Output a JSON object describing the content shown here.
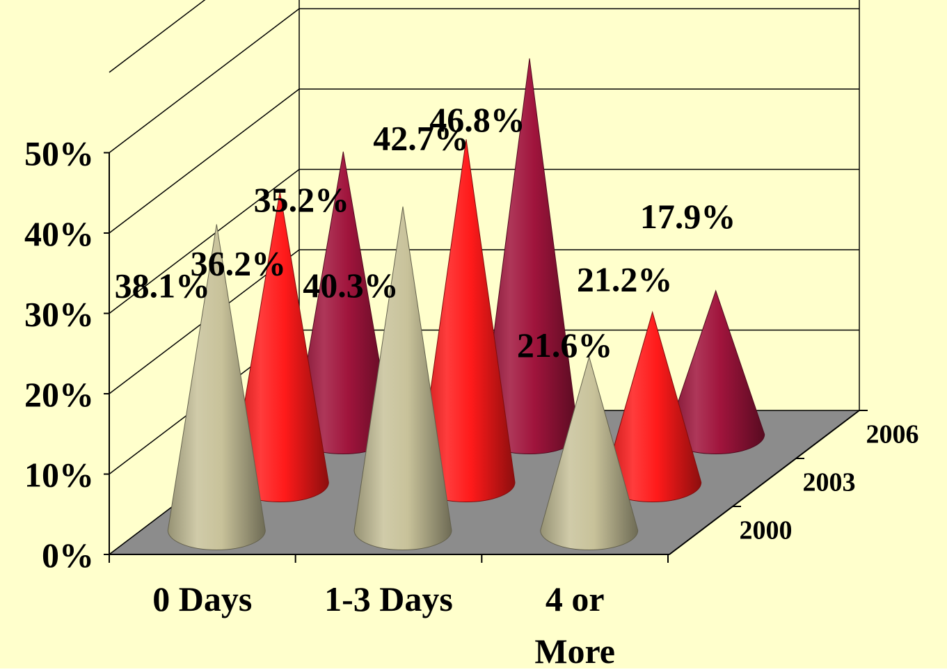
{
  "colors": {
    "background": "#FFFFCC",
    "floor": "#8C8C8C",
    "gridline": "#000000",
    "series_2000": "#C8C29A",
    "series_2003": "#FF1A1A",
    "series_2006": "#A0143C"
  },
  "chart_data": {
    "type": "bar",
    "shape": "3d-cone",
    "title": "",
    "xlabel": "",
    "ylabel": "",
    "categories": [
      "0 Days",
      "1-3 Days",
      "4 or More"
    ],
    "category_lines": [
      [
        "0 Days"
      ],
      [
        "1-3 Days"
      ],
      [
        "4 or",
        "More"
      ]
    ],
    "series": [
      {
        "name": "2000",
        "values": [
          38.1,
          40.3,
          21.6
        ],
        "labels": [
          "38.1%",
          "40.3%",
          "21.6%"
        ]
      },
      {
        "name": "2003",
        "values": [
          36.2,
          42.7,
          21.2
        ],
        "labels": [
          "36.2%",
          "42.7%",
          "21.2%"
        ]
      },
      {
        "name": "2006",
        "values": [
          35.2,
          46.8,
          17.9
        ],
        "labels": [
          "35.2%",
          "46.8%",
          "17.9%"
        ]
      }
    ],
    "depth_axis_labels": [
      "2000",
      "2003",
      "2006"
    ],
    "ylim": [
      0,
      60
    ],
    "y_ticks": [
      0,
      10,
      20,
      30,
      40,
      50
    ],
    "y_tick_labels": [
      "0%",
      "10%",
      "20%",
      "30%",
      "40%",
      "50%"
    ],
    "grid": true,
    "legend": "none"
  }
}
